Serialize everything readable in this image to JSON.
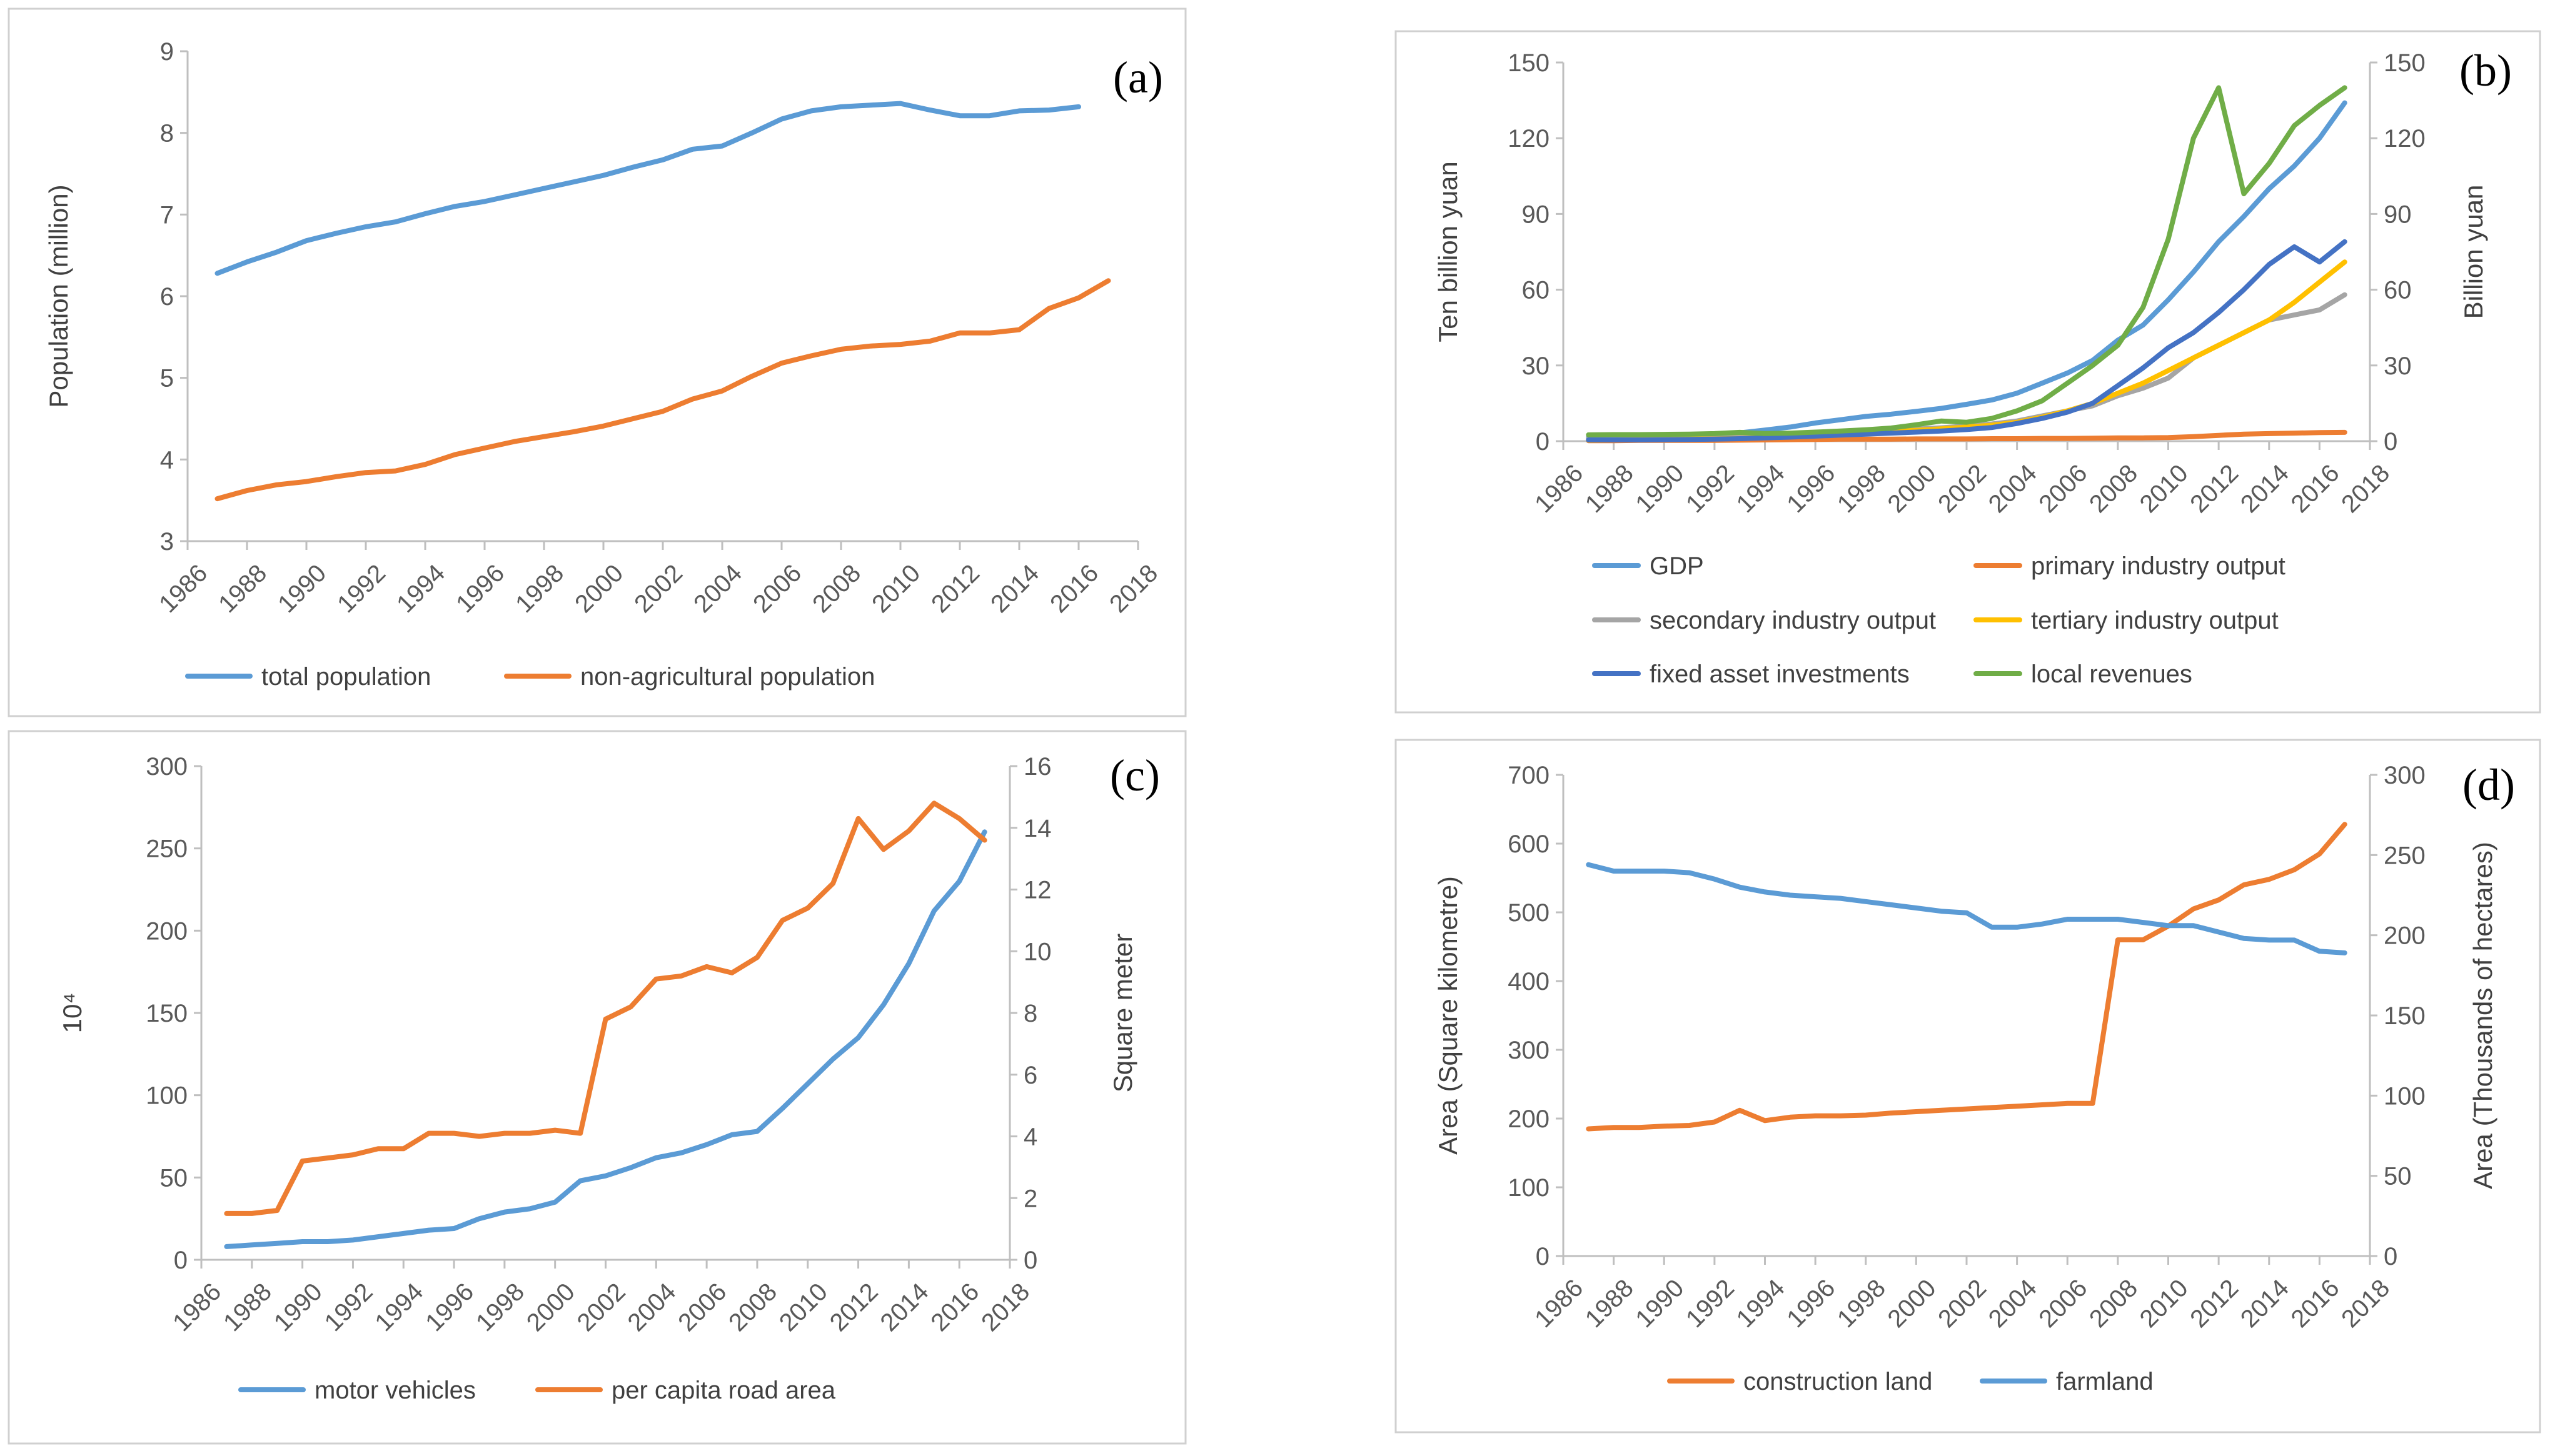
{
  "colors": {
    "blue": "#5B9BD5",
    "orange": "#ED7D31",
    "gray": "#A5A5A5",
    "yellow": "#FFC000",
    "darkblue": "#4472C4",
    "green": "#70AD47"
  },
  "chart_data": [
    {
      "id": "a",
      "type": "line",
      "label": "(a)",
      "ylabel": "Population (million)",
      "ylim": [
        3,
        9
      ],
      "yticks": [
        "3",
        "4",
        "5",
        "6",
        "7",
        "8",
        "9"
      ],
      "xlim": [
        1986,
        2018
      ],
      "xticks": [
        "1986",
        "1988",
        "1990",
        "1992",
        "1994",
        "1996",
        "1998",
        "2000",
        "2002",
        "2004",
        "2006",
        "2008",
        "2010",
        "2012",
        "2014",
        "2016",
        "2018"
      ],
      "legend_position": "bottom",
      "series": [
        {
          "name": "total population",
          "color": "#5B9BD5",
          "axis": "left",
          "x": [
            1987,
            1988,
            1989,
            1990,
            1991,
            1992,
            1993,
            1994,
            1995,
            1996,
            1997,
            1998,
            1999,
            2000,
            2001,
            2002,
            2003,
            2004,
            2005,
            2006,
            2007,
            2008,
            2009,
            2010,
            2011,
            2012,
            2013,
            2014,
            2015,
            2016
          ],
          "y": [
            6.28,
            6.42,
            6.54,
            6.68,
            6.77,
            6.85,
            6.91,
            7.01,
            7.1,
            7.16,
            7.24,
            7.32,
            7.4,
            7.48,
            7.58,
            7.67,
            7.8,
            7.84,
            8.0,
            8.17,
            8.27,
            8.32,
            8.34,
            8.36,
            8.28,
            8.21,
            8.21,
            8.27,
            8.28,
            8.32
          ]
        },
        {
          "name": "non-agricultural population",
          "color": "#ED7D31",
          "axis": "left",
          "x": [
            1987,
            1988,
            1989,
            1990,
            1991,
            1992,
            1993,
            1994,
            1995,
            1996,
            1997,
            1998,
            1999,
            2000,
            2001,
            2002,
            2003,
            2004,
            2005,
            2006,
            2007,
            2008,
            2009,
            2010,
            2011,
            2012,
            2013,
            2014,
            2015,
            2016,
            2017
          ],
          "y": [
            3.52,
            3.62,
            3.69,
            3.73,
            3.79,
            3.84,
            3.86,
            3.94,
            4.06,
            4.14,
            4.22,
            4.28,
            4.34,
            4.41,
            4.5,
            4.59,
            4.74,
            4.84,
            5.02,
            5.18,
            5.27,
            5.35,
            5.39,
            5.41,
            5.45,
            5.55,
            5.55,
            5.59,
            5.85,
            5.98,
            6.19
          ]
        }
      ]
    },
    {
      "id": "b",
      "type": "line",
      "label": "(b)",
      "ylabel": "Ten billion yuan",
      "ylabel_right": "Billion yuan",
      "ylim": [
        0,
        150
      ],
      "ylim_right": [
        0,
        150
      ],
      "yticks": [
        "0",
        "30",
        "60",
        "90",
        "120",
        "150"
      ],
      "yticks_right": [
        "0",
        "30",
        "60",
        "90",
        "120",
        "150"
      ],
      "xlim": [
        1986,
        2018
      ],
      "xticks": [
        "1986",
        "1988",
        "1990",
        "1992",
        "1994",
        "1996",
        "1998",
        "2000",
        "2002",
        "2004",
        "2006",
        "2008",
        "2010",
        "2012",
        "2014",
        "2016",
        "2018"
      ],
      "legend_position": "bottom",
      "series": [
        {
          "name": "GDP",
          "color": "#5B9BD5",
          "axis": "left",
          "x": [
            1987,
            1988,
            1989,
            1990,
            1991,
            1992,
            1993,
            1994,
            1995,
            1996,
            1997,
            1998,
            1999,
            2000,
            2001,
            2002,
            2003,
            2004,
            2005,
            2006,
            2007,
            2008,
            2009,
            2010,
            2011,
            2012,
            2013,
            2014,
            2015,
            2016,
            2017
          ],
          "y": [
            1.5,
            1.7,
            1.9,
            2.1,
            2.4,
            2.8,
            3.3,
            4.4,
            5.6,
            7.2,
            8.5,
            9.8,
            10.7,
            11.8,
            13.0,
            14.6,
            16.3,
            19.0,
            23.0,
            27.0,
            32.0,
            40.0,
            46.0,
            56.0,
            67.0,
            79.0,
            89.0,
            100.0,
            109.0,
            120.0,
            134.0
          ]
        },
        {
          "name": "primary industry output",
          "color": "#ED7D31",
          "axis": "left",
          "x": [
            1987,
            1988,
            1989,
            1990,
            1991,
            1992,
            1993,
            1994,
            1995,
            1996,
            1997,
            1998,
            1999,
            2000,
            2001,
            2002,
            2003,
            2004,
            2005,
            2006,
            2007,
            2008,
            2009,
            2010,
            2011,
            2012,
            2013,
            2014,
            2015,
            2016,
            2017
          ],
          "y": [
            0.2,
            0.2,
            0.3,
            0.3,
            0.3,
            0.3,
            0.4,
            0.5,
            0.6,
            0.7,
            0.8,
            0.8,
            0.8,
            0.9,
            0.9,
            0.9,
            1.0,
            1.0,
            1.1,
            1.1,
            1.2,
            1.3,
            1.3,
            1.4,
            1.8,
            2.3,
            2.8,
            3.0,
            3.2,
            3.4,
            3.5
          ]
        },
        {
          "name": "secondary industry output",
          "color": "#A5A5A5",
          "axis": "left",
          "x": [
            1987,
            1988,
            1989,
            1990,
            1991,
            1992,
            1993,
            1994,
            1995,
            1996,
            1997,
            1998,
            1999,
            2000,
            2001,
            2002,
            2003,
            2004,
            2005,
            2006,
            2007,
            2008,
            2009,
            2010,
            2011,
            2012,
            2013,
            2014,
            2015,
            2016,
            2017
          ],
          "y": [
            1.0,
            1.1,
            1.2,
            1.3,
            1.4,
            1.6,
            1.9,
            2.3,
            2.8,
            3.4,
            3.8,
            4.1,
            4.4,
            4.8,
            5.3,
            6.0,
            6.8,
            8.0,
            10.0,
            12.0,
            14.0,
            18.0,
            21.0,
            25.0,
            33.0,
            38.0,
            43.0,
            48.0,
            50.0,
            52.0,
            58.0
          ]
        },
        {
          "name": "tertiary industry output",
          "color": "#FFC000",
          "axis": "left",
          "x": [
            1987,
            1988,
            1989,
            1990,
            1991,
            1992,
            1993,
            1994,
            1995,
            1996,
            1997,
            1998,
            1999,
            2000,
            2001,
            2002,
            2003,
            2004,
            2005,
            2006,
            2007,
            2008,
            2009,
            2010,
            2011,
            2012,
            2013,
            2014,
            2015,
            2016,
            2017
          ],
          "y": [
            0.4,
            0.5,
            0.6,
            0.7,
            0.8,
            0.9,
            1.1,
            1.4,
            1.8,
            2.3,
            2.8,
            3.3,
            3.8,
            4.3,
            4.9,
            5.6,
            6.3,
            7.5,
            9.5,
            12.0,
            15.0,
            19.0,
            23.0,
            28.0,
            33.0,
            38.0,
            43.0,
            48.0,
            55.0,
            63.0,
            71.0
          ]
        },
        {
          "name": "fixed asset investments",
          "color": "#4472C4",
          "axis": "left",
          "x": [
            1987,
            1988,
            1989,
            1990,
            1991,
            1992,
            1993,
            1994,
            1995,
            1996,
            1997,
            1998,
            1999,
            2000,
            2001,
            2002,
            2003,
            2004,
            2005,
            2006,
            2007,
            2008,
            2009,
            2010,
            2011,
            2012,
            2013,
            2014,
            2015,
            2016,
            2017
          ],
          "y": [
            0.5,
            0.5,
            0.5,
            0.6,
            0.7,
            0.8,
            1.0,
            1.3,
            1.6,
            2.0,
            2.4,
            2.8,
            3.2,
            3.6,
            4.0,
            4.6,
            5.4,
            7.0,
            9.0,
            11.5,
            15.0,
            22.0,
            29.0,
            37.0,
            43.0,
            51.0,
            60.0,
            70.0,
            77.0,
            71.0,
            79.0
          ]
        },
        {
          "name": "local revenues",
          "color": "#70AD47",
          "axis": "right",
          "x": [
            1987,
            1988,
            1989,
            1990,
            1991,
            1992,
            1993,
            1994,
            1995,
            1996,
            1997,
            1998,
            1999,
            2000,
            2001,
            2002,
            2003,
            2004,
            2005,
            2006,
            2007,
            2008,
            2009,
            2010,
            2011,
            2012,
            2013,
            2014,
            2015,
            2016,
            2017
          ],
          "y": [
            2.5,
            2.6,
            2.6,
            2.7,
            2.8,
            3.0,
            3.5,
            3.0,
            3.2,
            3.6,
            4.0,
            4.5,
            5.2,
            6.5,
            8.0,
            7.5,
            9.0,
            12.0,
            16.0,
            23.0,
            30.0,
            38.0,
            53.0,
            80.0,
            120.0,
            140.0,
            98.0,
            110.0,
            125.0,
            133.0,
            140.0
          ]
        }
      ]
    },
    {
      "id": "c",
      "type": "line",
      "label": "(c)",
      "ylabel": "10⁴",
      "ylabel_right": "Square meter",
      "ylim": [
        0,
        300
      ],
      "ylim_right": [
        0,
        16
      ],
      "yticks": [
        "0",
        "50",
        "100",
        "150",
        "200",
        "250",
        "300"
      ],
      "yticks_right": [
        "0",
        "2",
        "4",
        "6",
        "8",
        "10",
        "12",
        "14",
        "16"
      ],
      "xlim": [
        1986,
        2018
      ],
      "xticks": [
        "1986",
        "1988",
        "1990",
        "1992",
        "1994",
        "1996",
        "1998",
        "2000",
        "2002",
        "2004",
        "2006",
        "2008",
        "2010",
        "2012",
        "2014",
        "2016",
        "2018"
      ],
      "legend_position": "bottom",
      "series": [
        {
          "name": "motor vehicles",
          "color": "#5B9BD5",
          "axis": "left",
          "x": [
            1987,
            1988,
            1989,
            1990,
            1991,
            1992,
            1993,
            1994,
            1995,
            1996,
            1997,
            1998,
            1999,
            2000,
            2001,
            2002,
            2003,
            2004,
            2005,
            2006,
            2007,
            2008,
            2009,
            2010,
            2011,
            2012,
            2013,
            2014,
            2015,
            2016,
            2017
          ],
          "y": [
            8,
            9,
            10,
            11,
            11,
            12,
            14,
            16,
            18,
            19,
            25,
            29,
            31,
            35,
            48,
            51,
            56,
            62,
            65,
            70,
            76,
            78,
            92,
            107,
            122,
            135,
            155,
            180,
            212,
            230,
            260
          ]
        },
        {
          "name": "per capita road area",
          "color": "#ED7D31",
          "axis": "right",
          "x": [
            1987,
            1988,
            1989,
            1990,
            1991,
            1992,
            1993,
            1994,
            1995,
            1996,
            1997,
            1998,
            1999,
            2000,
            2001,
            2002,
            2003,
            2004,
            2005,
            2006,
            2007,
            2008,
            2009,
            2010,
            2011,
            2012,
            2013,
            2014,
            2015,
            2016,
            2017
          ],
          "y": [
            1.5,
            1.5,
            1.6,
            3.2,
            3.3,
            3.4,
            3.6,
            3.6,
            4.1,
            4.1,
            4.0,
            4.1,
            4.1,
            4.2,
            4.1,
            7.8,
            8.2,
            9.1,
            9.2,
            9.5,
            9.3,
            9.8,
            11.0,
            11.4,
            12.2,
            14.3,
            13.3,
            13.9,
            14.8,
            14.3,
            13.6
          ]
        }
      ]
    },
    {
      "id": "d",
      "type": "line",
      "label": "(d)",
      "ylabel": "Area (Square kilometre)",
      "ylabel_right": "Area (Thousands of hectares)",
      "ylim": [
        0,
        700
      ],
      "ylim_right": [
        0,
        300
      ],
      "yticks": [
        "0",
        "100",
        "200",
        "300",
        "400",
        "500",
        "600",
        "700"
      ],
      "yticks_right": [
        "0",
        "50",
        "100",
        "150",
        "200",
        "250",
        "300"
      ],
      "xlim": [
        1986,
        2018
      ],
      "xticks": [
        "1986",
        "1988",
        "1990",
        "1992",
        "1994",
        "1996",
        "1998",
        "2000",
        "2002",
        "2004",
        "2006",
        "2008",
        "2010",
        "2012",
        "2014",
        "2016",
        "2018"
      ],
      "legend_position": "bottom",
      "series": [
        {
          "name": "construction land",
          "color": "#ED7D31",
          "axis": "left",
          "x": [
            1987,
            1988,
            1989,
            1990,
            1991,
            1992,
            1993,
            1994,
            1995,
            1996,
            1997,
            1998,
            1999,
            2000,
            2001,
            2002,
            2003,
            2004,
            2005,
            2006,
            2007,
            2008,
            2009,
            2010,
            2011,
            2012,
            2013,
            2014,
            2015,
            2016,
            2017
          ],
          "y": [
            185,
            187,
            187,
            189,
            190,
            195,
            212,
            197,
            202,
            204,
            204,
            205,
            208,
            210,
            212,
            214,
            216,
            218,
            220,
            222,
            222,
            460,
            460,
            480,
            505,
            518,
            540,
            548,
            562,
            585,
            628
          ]
        },
        {
          "name": "farmland",
          "color": "#5B9BD5",
          "axis": "right",
          "x": [
            1987,
            1988,
            1989,
            1990,
            1991,
            1992,
            1993,
            1994,
            1995,
            1996,
            1997,
            1998,
            1999,
            2000,
            2001,
            2002,
            2003,
            2004,
            2005,
            2006,
            2007,
            2008,
            2009,
            2010,
            2011,
            2012,
            2013,
            2014,
            2015,
            2016,
            2017
          ],
          "y": [
            244,
            240,
            240,
            240,
            239,
            235,
            230,
            227,
            225,
            224,
            223,
            221,
            219,
            217,
            215,
            214,
            205,
            205,
            207,
            210,
            210,
            210,
            208,
            206,
            206,
            202,
            198,
            197,
            197,
            190,
            189
          ]
        }
      ]
    }
  ]
}
